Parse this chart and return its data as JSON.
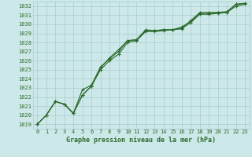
{
  "title": "Graphe pression niveau de la mer (hPa)",
  "xlabel_hours": [
    0,
    1,
    2,
    3,
    4,
    5,
    6,
    7,
    8,
    9,
    10,
    11,
    12,
    13,
    14,
    15,
    16,
    17,
    18,
    19,
    20,
    21,
    22,
    23
  ],
  "line1": [
    1019.0,
    1020.0,
    1021.5,
    1021.2,
    1020.2,
    1022.2,
    1023.2,
    1025.2,
    1026.3,
    1027.2,
    1028.2,
    1028.3,
    1029.4,
    1029.3,
    1029.4,
    1029.4,
    1029.7,
    1030.3,
    1031.2,
    1031.2,
    1031.3,
    1031.3,
    1032.2,
    1032.3
  ],
  "line2": [
    1019.0,
    1020.0,
    1021.5,
    1021.2,
    1020.2,
    1022.8,
    1023.3,
    1025.3,
    1026.2,
    1027.0,
    1028.2,
    1028.3,
    1029.3,
    1029.3,
    1029.4,
    1029.4,
    1029.6,
    1030.4,
    1031.3,
    1031.3,
    1031.3,
    1031.4,
    1032.2,
    1032.3
  ],
  "line3": [
    1019.0,
    1020.0,
    1021.5,
    1021.2,
    1020.2,
    1022.2,
    1023.2,
    1025.0,
    1026.0,
    1026.7,
    1028.0,
    1028.2,
    1029.2,
    1029.2,
    1029.3,
    1029.4,
    1029.5,
    1030.2,
    1031.1,
    1031.1,
    1031.2,
    1031.3,
    1032.0,
    1032.2
  ],
  "bg_color": "#cce8e8",
  "grid_color": "#aacccc",
  "line_color": "#2d6a2d",
  "tick_label_color": "#2d6a2d",
  "title_color": "#2d6a2d",
  "ylim_min": 1018.5,
  "ylim_max": 1032.5,
  "yticks": [
    1019,
    1020,
    1021,
    1022,
    1023,
    1024,
    1025,
    1026,
    1027,
    1028,
    1029,
    1030,
    1031,
    1032
  ],
  "marker": "+",
  "markersize": 3,
  "linewidth": 0.8,
  "fontsize_ticks": 5.0,
  "fontsize_title": 6.0
}
